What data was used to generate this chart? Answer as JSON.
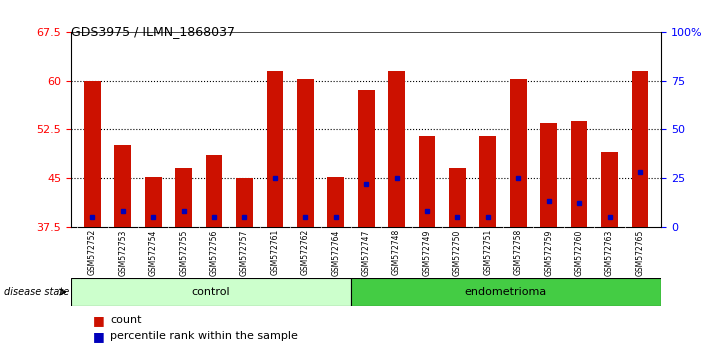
{
  "title": "GDS3975 / ILMN_1868037",
  "samples": [
    "GSM572752",
    "GSM572753",
    "GSM572754",
    "GSM572755",
    "GSM572756",
    "GSM572757",
    "GSM572761",
    "GSM572762",
    "GSM572764",
    "GSM572747",
    "GSM572748",
    "GSM572749",
    "GSM572750",
    "GSM572751",
    "GSM572758",
    "GSM572759",
    "GSM572760",
    "GSM572763",
    "GSM572765"
  ],
  "counts": [
    60.0,
    50.0,
    45.2,
    46.6,
    48.5,
    45.0,
    61.5,
    60.3,
    45.1,
    58.5,
    61.5,
    51.5,
    46.5,
    51.5,
    60.3,
    53.5,
    53.8,
    49.0,
    61.5
  ],
  "percentiles": [
    5,
    8,
    5,
    8,
    5,
    5,
    25,
    5,
    5,
    22,
    25,
    8,
    5,
    5,
    25,
    13,
    12,
    5,
    28
  ],
  "control_count": 9,
  "ylim_left": [
    37.5,
    67.5
  ],
  "ylim_right": [
    0,
    100
  ],
  "yticks_left": [
    37.5,
    45.0,
    52.5,
    60.0,
    67.5
  ],
  "yticks_right": [
    0,
    25,
    50,
    75,
    100
  ],
  "bar_color": "#cc1100",
  "marker_color": "#0000bb",
  "control_bg": "#ccffcc",
  "endometrioma_bg": "#44cc44",
  "sample_bg": "#cccccc",
  "disease_label": "disease state",
  "group1_label": "control",
  "group2_label": "endometrioma",
  "legend_count": "count",
  "legend_pct": "percentile rank within the sample"
}
